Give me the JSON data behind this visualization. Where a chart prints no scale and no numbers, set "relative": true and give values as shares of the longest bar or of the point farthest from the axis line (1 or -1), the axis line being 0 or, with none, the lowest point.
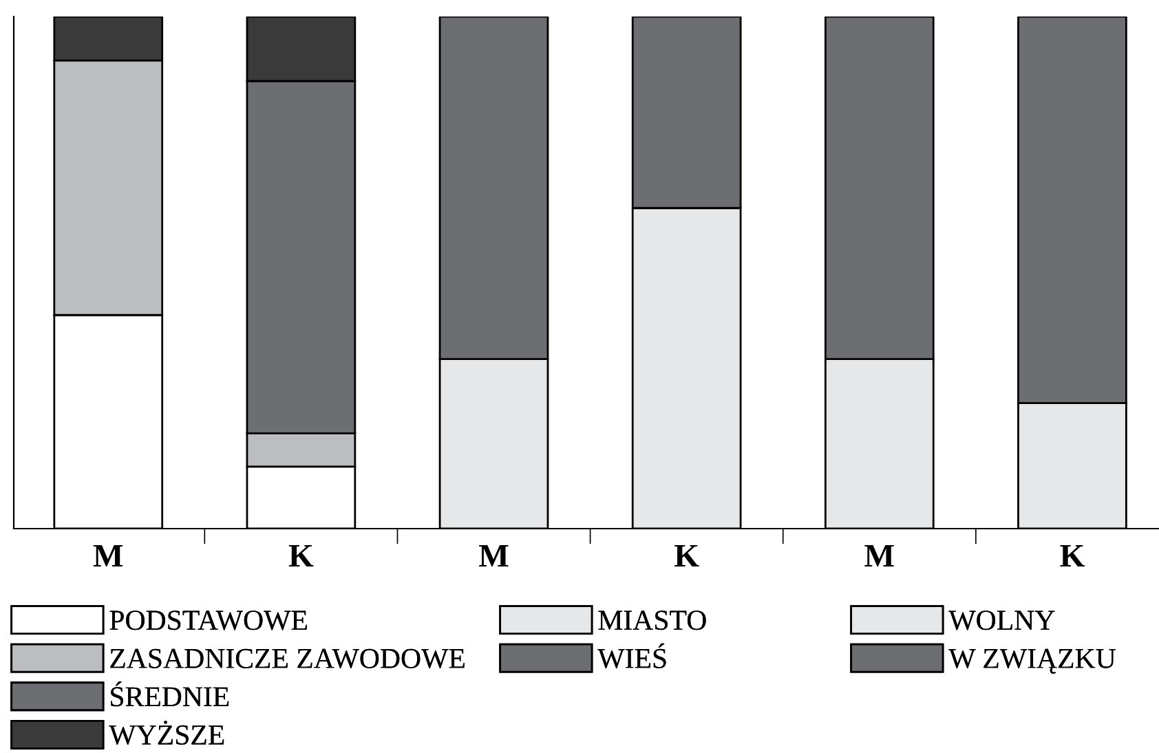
{
  "chart_data": {
    "type": "bar",
    "stacked": true,
    "relative": true,
    "legend": "bottom",
    "categories": [
      "M",
      "K",
      "M",
      "K",
      "M",
      "K"
    ],
    "series": [
      {
        "name": "PODSTAWOWE",
        "color": "#ffffff",
        "values": [
          0.417,
          0.121,
          null,
          null,
          null,
          null
        ]
      },
      {
        "name": "ZASADNICZE ZAWODOWE",
        "color": "#bcbdc0",
        "values": [
          0.497,
          0.065,
          null,
          null,
          null,
          null
        ]
      },
      {
        "name": "ŚREDNIE",
        "color": "#6d6e71",
        "values": [
          null,
          0.688,
          null,
          null,
          null,
          null
        ]
      },
      {
        "name": "WYŻSZE",
        "color": "#3a3a3a",
        "values": [
          0.086,
          0.126,
          null,
          null,
          null,
          null
        ]
      },
      {
        "name": "MIASTO",
        "color": "#e6e7e8",
        "values": [
          null,
          null,
          0.331,
          0.626,
          null,
          null
        ]
      },
      {
        "name": "WIEŚ",
        "color": "#6d6e71",
        "values": [
          null,
          null,
          0.669,
          0.374,
          null,
          null
        ]
      },
      {
        "name": "WOLNY",
        "color": "#e6e7e8",
        "values": [
          null,
          null,
          null,
          null,
          0.331,
          0.245
        ]
      },
      {
        "name": "W ZWIĄZKU",
        "color": "#6d6e71",
        "values": [
          null,
          null,
          null,
          null,
          0.669,
          0.755
        ]
      }
    ]
  }
}
